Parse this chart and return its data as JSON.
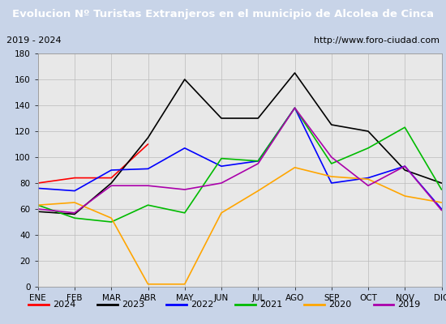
{
  "title": "Evolucion Nº Turistas Extranjeros en el municipio de Alcolea de Cinca",
  "subtitle_left": "2019 - 2024",
  "subtitle_right": "http://www.foro-ciudad.com",
  "x_labels": [
    "ENE",
    "FEB",
    "MAR",
    "ABR",
    "MAY",
    "JUN",
    "JUL",
    "AGO",
    "SEP",
    "OCT",
    "NOV",
    "DIC"
  ],
  "series": {
    "2024": {
      "color": "#ff0000",
      "data": [
        80,
        84,
        84,
        110,
        null,
        null,
        null,
        null,
        null,
        null,
        null,
        null
      ]
    },
    "2023": {
      "color": "#000000",
      "data": [
        58,
        56,
        80,
        115,
        160,
        130,
        130,
        165,
        125,
        120,
        90,
        80
      ]
    },
    "2022": {
      "color": "#0000ff",
      "data": [
        76,
        74,
        90,
        91,
        107,
        93,
        97,
        138,
        80,
        84,
        93,
        60
      ]
    },
    "2021": {
      "color": "#00bb00",
      "data": [
        63,
        53,
        50,
        63,
        57,
        99,
        97,
        138,
        95,
        107,
        123,
        75
      ]
    },
    "2020": {
      "color": "#ffa500",
      "data": [
        63,
        65,
        53,
        2,
        2,
        57,
        74,
        92,
        85,
        83,
        70,
        65
      ]
    },
    "2019": {
      "color": "#aa00aa",
      "data": [
        60,
        57,
        78,
        78,
        75,
        80,
        95,
        138,
        100,
        78,
        93,
        59
      ]
    }
  },
  "ylim": [
    0,
    180
  ],
  "yticks": [
    0,
    20,
    40,
    60,
    80,
    100,
    120,
    140,
    160,
    180
  ],
  "title_bg_color": "#4a6faf",
  "title_font_color": "#ffffff",
  "plot_bg_color": "#e8e8e8",
  "outer_bg_color": "#c8d4e8",
  "grid_color": "#bbbbbb",
  "legend_order": [
    "2024",
    "2023",
    "2022",
    "2021",
    "2020",
    "2019"
  ]
}
